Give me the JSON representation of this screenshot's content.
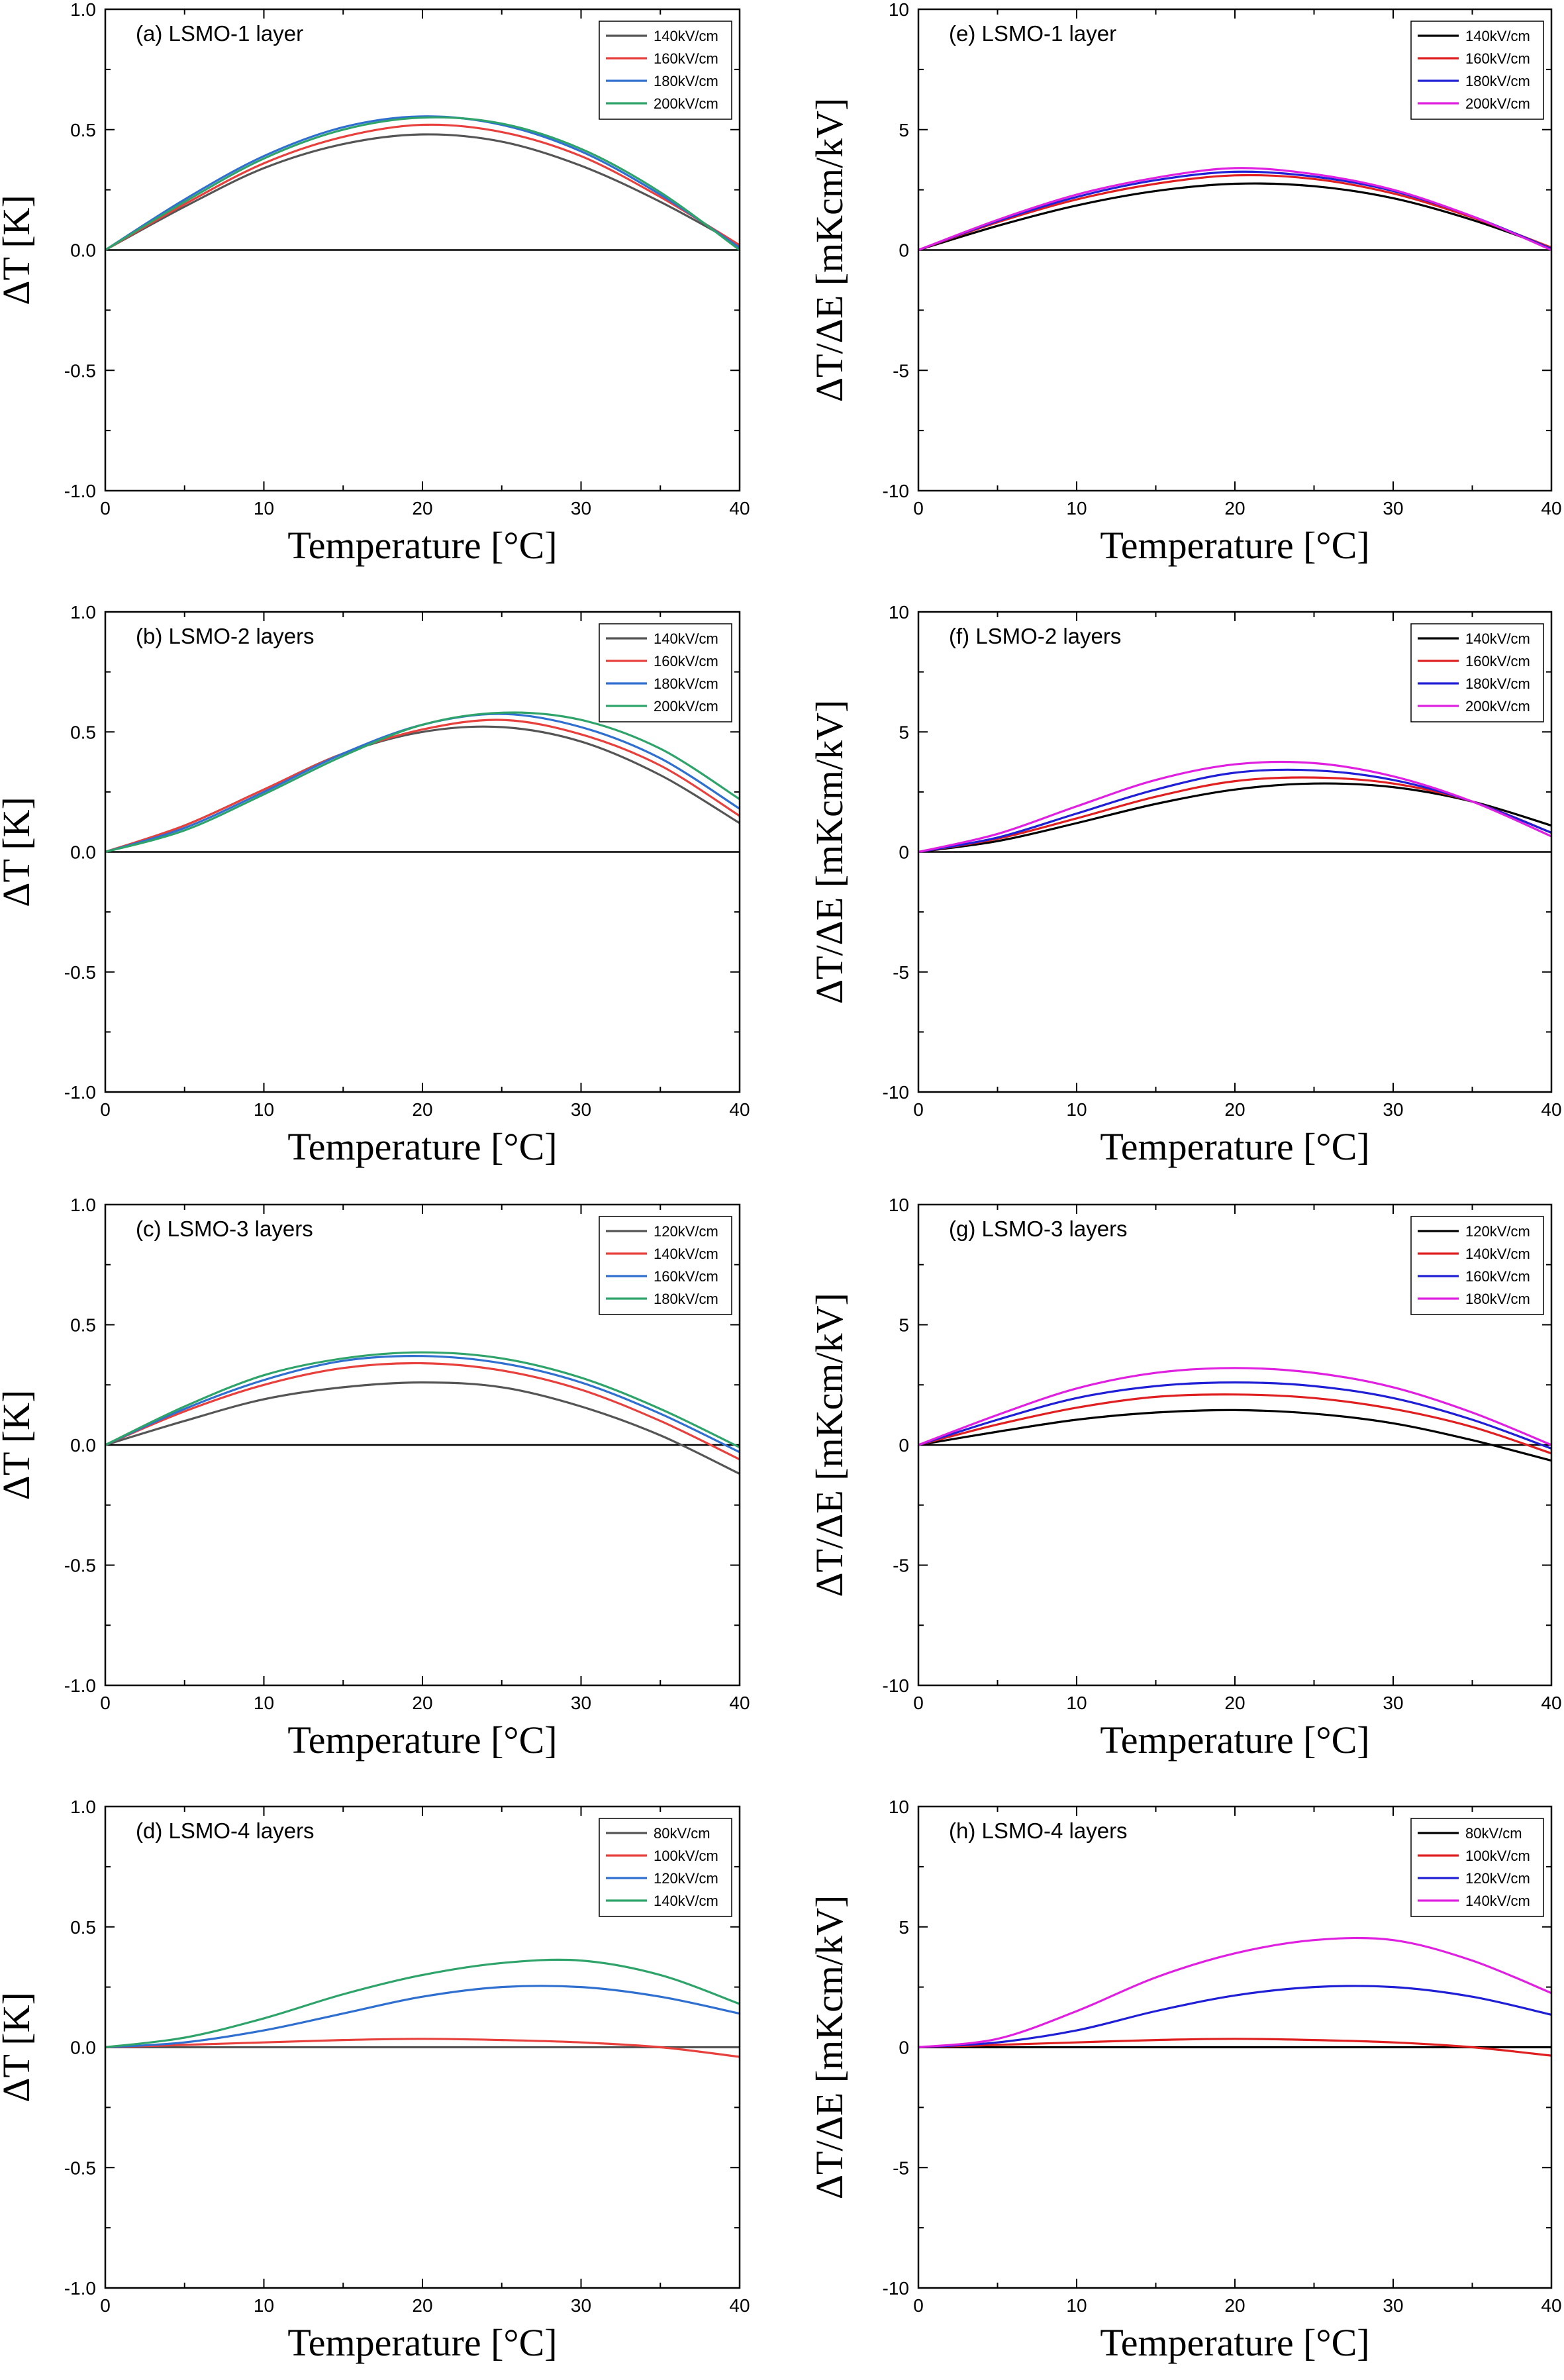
{
  "chart_data": [
    {
      "type": "line",
      "title": "(a) LSMO-1 layer",
      "xlabel": "Temperature [°C]",
      "ylabel": "ΔT [K]",
      "xlim": [
        0,
        40
      ],
      "ylim": [
        -1.0,
        1.0
      ],
      "xticks": [
        "0",
        "10",
        "20",
        "30",
        "40"
      ],
      "yticks": [
        "1.0",
        "0.5",
        "0.0",
        "-0.5",
        "-1.0"
      ],
      "legend_position": "top-right",
      "x": [
        0,
        5,
        10,
        15,
        20,
        25,
        30,
        35,
        40
      ],
      "series": [
        {
          "name": "140kV/cm",
          "color": "#555555",
          "values": [
            0,
            0.18,
            0.34,
            0.44,
            0.48,
            0.45,
            0.35,
            0.2,
            0.02
          ]
        },
        {
          "name": "160kV/cm",
          "color": "#e8403c",
          "values": [
            0,
            0.19,
            0.36,
            0.47,
            0.52,
            0.49,
            0.39,
            0.22,
            0.02
          ]
        },
        {
          "name": "180kV/cm",
          "color": "#2f6fd0",
          "values": [
            0,
            0.21,
            0.39,
            0.51,
            0.555,
            0.52,
            0.41,
            0.23,
            0.01
          ]
        },
        {
          "name": "200kV/cm",
          "color": "#2ea36a",
          "values": [
            0,
            0.2,
            0.38,
            0.5,
            0.55,
            0.525,
            0.42,
            0.24,
            0.0
          ]
        }
      ]
    },
    {
      "type": "line",
      "title": "(b) LSMO-2 layers",
      "xlabel": "Temperature [°C]",
      "ylabel": "ΔT [K]",
      "xlim": [
        0,
        40
      ],
      "ylim": [
        -1.0,
        1.0
      ],
      "xticks": [
        "0",
        "10",
        "20",
        "30",
        "40"
      ],
      "yticks": [
        "1.0",
        "0.5",
        "0.0",
        "-0.5",
        "-1.0"
      ],
      "legend_position": "top-right",
      "x": [
        0,
        5,
        10,
        15,
        20,
        25,
        30,
        35,
        40
      ],
      "series": [
        {
          "name": "140kV/cm",
          "color": "#555555",
          "values": [
            0,
            0.11,
            0.26,
            0.41,
            0.5,
            0.52,
            0.46,
            0.32,
            0.12
          ]
        },
        {
          "name": "160kV/cm",
          "color": "#e8403c",
          "values": [
            0,
            0.11,
            0.26,
            0.41,
            0.51,
            0.55,
            0.49,
            0.36,
            0.15
          ]
        },
        {
          "name": "180kV/cm",
          "color": "#2f6fd0",
          "values": [
            0,
            0.1,
            0.25,
            0.41,
            0.53,
            0.575,
            0.52,
            0.39,
            0.18
          ]
        },
        {
          "name": "200kV/cm",
          "color": "#2ea36a",
          "values": [
            0,
            0.09,
            0.24,
            0.4,
            0.53,
            0.58,
            0.55,
            0.43,
            0.22
          ]
        }
      ]
    },
    {
      "type": "line",
      "title": "(c) LSMO-3 layers",
      "xlabel": "Temperature [°C]",
      "ylabel": "ΔT [K]",
      "xlim": [
        0,
        40
      ],
      "ylim": [
        -1.0,
        1.0
      ],
      "xticks": [
        "0",
        "10",
        "20",
        "30",
        "40"
      ],
      "yticks": [
        "1.0",
        "0.5",
        "0.0",
        "-0.5",
        "-1.0"
      ],
      "legend_position": "top-right",
      "x": [
        0,
        5,
        10,
        15,
        20,
        25,
        30,
        35,
        40
      ],
      "series": [
        {
          "name": "120kV/cm",
          "color": "#555555",
          "values": [
            0,
            0.1,
            0.19,
            0.24,
            0.26,
            0.24,
            0.16,
            0.04,
            -0.12
          ]
        },
        {
          "name": "140kV/cm",
          "color": "#e8403c",
          "values": [
            0,
            0.14,
            0.25,
            0.32,
            0.34,
            0.31,
            0.23,
            0.1,
            -0.06
          ]
        },
        {
          "name": "160kV/cm",
          "color": "#2f6fd0",
          "values": [
            0,
            0.15,
            0.27,
            0.35,
            0.37,
            0.34,
            0.26,
            0.13,
            -0.03
          ]
        },
        {
          "name": "180kV/cm",
          "color": "#2ea36a",
          "values": [
            0,
            0.16,
            0.29,
            0.36,
            0.385,
            0.36,
            0.28,
            0.15,
            -0.01
          ]
        }
      ]
    },
    {
      "type": "line",
      "title": "(d) LSMO-4 layers",
      "xlabel": "Temperature [°C]",
      "ylabel": "ΔT [K]",
      "xlim": [
        0,
        40
      ],
      "ylim": [
        -1.0,
        1.0
      ],
      "xticks": [
        "0",
        "10",
        "20",
        "30",
        "40"
      ],
      "yticks": [
        "1.0",
        "0.5",
        "0.0",
        "-0.5",
        "-1.0"
      ],
      "legend_position": "top-right",
      "x": [
        0,
        5,
        10,
        15,
        20,
        25,
        30,
        35,
        40
      ],
      "series": [
        {
          "name": "80kV/cm",
          "color": "#555555",
          "values": [
            0,
            0,
            0,
            0,
            0,
            0,
            0,
            0,
            0
          ]
        },
        {
          "name": "100kV/cm",
          "color": "#e8403c",
          "values": [
            0,
            0.01,
            0.02,
            0.03,
            0.035,
            0.03,
            0.02,
            0.0,
            -0.04
          ]
        },
        {
          "name": "120kV/cm",
          "color": "#2f6fd0",
          "values": [
            0,
            0.02,
            0.07,
            0.14,
            0.21,
            0.25,
            0.25,
            0.21,
            0.14
          ]
        },
        {
          "name": "140kV/cm",
          "color": "#2ea36a",
          "values": [
            0,
            0.04,
            0.12,
            0.22,
            0.3,
            0.35,
            0.36,
            0.3,
            0.18
          ]
        }
      ]
    },
    {
      "type": "line",
      "title": "(e) LSMO-1 layer",
      "xlabel": "Temperature [°C]",
      "ylabel": "ΔT/ΔE [mKcm/kV]",
      "xlim": [
        0,
        40
      ],
      "ylim": [
        -10,
        10
      ],
      "xticks": [
        "0",
        "10",
        "20",
        "30",
        "40"
      ],
      "yticks": [
        "10",
        "5",
        "0",
        "-5",
        "-10"
      ],
      "legend_position": "top-right",
      "x": [
        0,
        5,
        10,
        15,
        20,
        25,
        30,
        35,
        40
      ],
      "series": [
        {
          "name": "140kV/cm",
          "color": "#000000",
          "values": [
            0,
            1.0,
            1.85,
            2.45,
            2.75,
            2.65,
            2.15,
            1.25,
            0.1
          ]
        },
        {
          "name": "160kV/cm",
          "color": "#e02020",
          "values": [
            0,
            1.15,
            2.1,
            2.75,
            3.1,
            2.95,
            2.35,
            1.35,
            0.1
          ]
        },
        {
          "name": "180kV/cm",
          "color": "#1f1fd6",
          "values": [
            0,
            1.2,
            2.2,
            2.9,
            3.25,
            3.05,
            2.45,
            1.4,
            0.05
          ]
        },
        {
          "name": "200kV/cm",
          "color": "#e020e0",
          "values": [
            0,
            1.25,
            2.3,
            3.0,
            3.4,
            3.15,
            2.5,
            1.4,
            0.0
          ]
        }
      ]
    },
    {
      "type": "line",
      "title": "(f) LSMO-2 layers",
      "xlabel": "Temperature [°C]",
      "ylabel": "ΔT/ΔE [mKcm/kV]",
      "xlim": [
        0,
        40
      ],
      "ylim": [
        -10,
        10
      ],
      "xticks": [
        "0",
        "10",
        "20",
        "30",
        "40"
      ],
      "yticks": [
        "10",
        "5",
        "0",
        "-5",
        "-10"
      ],
      "legend_position": "top-right",
      "x": [
        0,
        5,
        10,
        15,
        20,
        25,
        30,
        35,
        40
      ],
      "series": [
        {
          "name": "140kV/cm",
          "color": "#000000",
          "values": [
            0,
            0.45,
            1.2,
            2.0,
            2.6,
            2.85,
            2.7,
            2.1,
            1.1
          ]
        },
        {
          "name": "160kV/cm",
          "color": "#e02020",
          "values": [
            0,
            0.55,
            1.4,
            2.3,
            2.95,
            3.1,
            2.85,
            2.1,
            0.8
          ]
        },
        {
          "name": "180kV/cm",
          "color": "#1f1fd6",
          "values": [
            0,
            0.6,
            1.6,
            2.6,
            3.3,
            3.4,
            3.0,
            2.1,
            0.8
          ]
        },
        {
          "name": "200kV/cm",
          "color": "#e020e0",
          "values": [
            0,
            0.75,
            1.9,
            3.0,
            3.65,
            3.7,
            3.15,
            2.1,
            0.65
          ]
        }
      ]
    },
    {
      "type": "line",
      "title": "(g) LSMO-3 layers",
      "xlabel": "Temperature [°C]",
      "ylabel": "ΔT/ΔE [mKcm/kV]",
      "xlim": [
        0,
        40
      ],
      "ylim": [
        -10,
        10
      ],
      "xticks": [
        "0",
        "10",
        "20",
        "30",
        "40"
      ],
      "yticks": [
        "10",
        "5",
        "0",
        "-5",
        "-10"
      ],
      "legend_position": "top-right",
      "x": [
        0,
        5,
        10,
        15,
        20,
        25,
        30,
        35,
        40
      ],
      "series": [
        {
          "name": "120kV/cm",
          "color": "#000000",
          "values": [
            0,
            0.55,
            1.05,
            1.35,
            1.45,
            1.3,
            0.9,
            0.2,
            -0.65
          ]
        },
        {
          "name": "140kV/cm",
          "color": "#e02020",
          "values": [
            0,
            0.85,
            1.55,
            2.0,
            2.1,
            1.95,
            1.5,
            0.75,
            -0.35
          ]
        },
        {
          "name": "160kV/cm",
          "color": "#1f1fd6",
          "values": [
            0,
            1.05,
            1.95,
            2.45,
            2.6,
            2.45,
            1.95,
            1.05,
            -0.15
          ]
        },
        {
          "name": "180kV/cm",
          "color": "#e020e0",
          "values": [
            0,
            1.25,
            2.35,
            3.0,
            3.2,
            3.0,
            2.4,
            1.35,
            0.0
          ]
        }
      ]
    },
    {
      "type": "line",
      "title": "(h) LSMO-4 layers",
      "xlabel": "Temperature [°C]",
      "ylabel": "ΔT/ΔE [mKcm/kV]",
      "xlim": [
        0,
        40
      ],
      "ylim": [
        -10,
        10
      ],
      "xticks": [
        "0",
        "10",
        "20",
        "30",
        "40"
      ],
      "yticks": [
        "10",
        "5",
        "0",
        "-5",
        "-10"
      ],
      "legend_position": "top-right",
      "x": [
        0,
        5,
        10,
        15,
        20,
        25,
        30,
        35,
        40
      ],
      "series": [
        {
          "name": "80kV/cm",
          "color": "#000000",
          "values": [
            0,
            0,
            0,
            0,
            0,
            0,
            0,
            0,
            0
          ]
        },
        {
          "name": "100kV/cm",
          "color": "#e02020",
          "values": [
            0,
            0.1,
            0.2,
            0.3,
            0.35,
            0.3,
            0.2,
            0.0,
            -0.35
          ]
        },
        {
          "name": "120kV/cm",
          "color": "#1f1fd6",
          "values": [
            0,
            0.2,
            0.7,
            1.5,
            2.15,
            2.5,
            2.5,
            2.1,
            1.35
          ]
        },
        {
          "name": "140kV/cm",
          "color": "#e020e0",
          "values": [
            0,
            0.35,
            1.5,
            2.9,
            3.9,
            4.45,
            4.45,
            3.6,
            2.25
          ]
        }
      ]
    }
  ]
}
